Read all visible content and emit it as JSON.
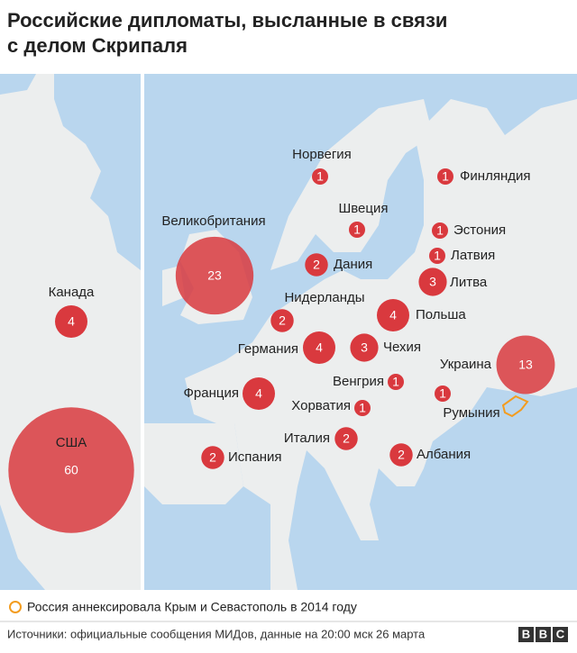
{
  "title": [
    "Российские дипломаты, высланные в связи",
    "с делом Скрипаля"
  ],
  "countries": [
    {
      "name": "Норвегия",
      "value": 1
    },
    {
      "name": "Финляндия",
      "value": 1
    },
    {
      "name": "Швеция",
      "value": 1
    },
    {
      "name": "Великобритания",
      "value": 23
    },
    {
      "name": "Эстония",
      "value": 1
    },
    {
      "name": "Латвия",
      "value": 1
    },
    {
      "name": "Дания",
      "value": 2
    },
    {
      "name": "Литва",
      "value": 3
    },
    {
      "name": "Нидерланды",
      "value": 2
    },
    {
      "name": "Канада",
      "value": 4
    },
    {
      "name": "Польша",
      "value": 4
    },
    {
      "name": "Германия",
      "value": 4
    },
    {
      "name": "Чехия",
      "value": 3
    },
    {
      "name": "Украина",
      "value": 13
    },
    {
      "name": "Венгрия",
      "value": 1
    },
    {
      "name": "Франция",
      "value": 4
    },
    {
      "name": "Румыния",
      "value": 1
    },
    {
      "name": "Хорватия",
      "value": 1
    },
    {
      "name": "Италия",
      "value": 2
    },
    {
      "name": "Испания",
      "value": 2
    },
    {
      "name": "Албания",
      "value": 2
    },
    {
      "name": "США",
      "value": 60
    }
  ],
  "legend": "Россия аннексировала Крым и Севастополь в 2014 году",
  "source": "Источники: официальные сообщения МИДов, данные на 20:00 мск 26 марта",
  "logo": [
    "B",
    "B",
    "C"
  ]
}
